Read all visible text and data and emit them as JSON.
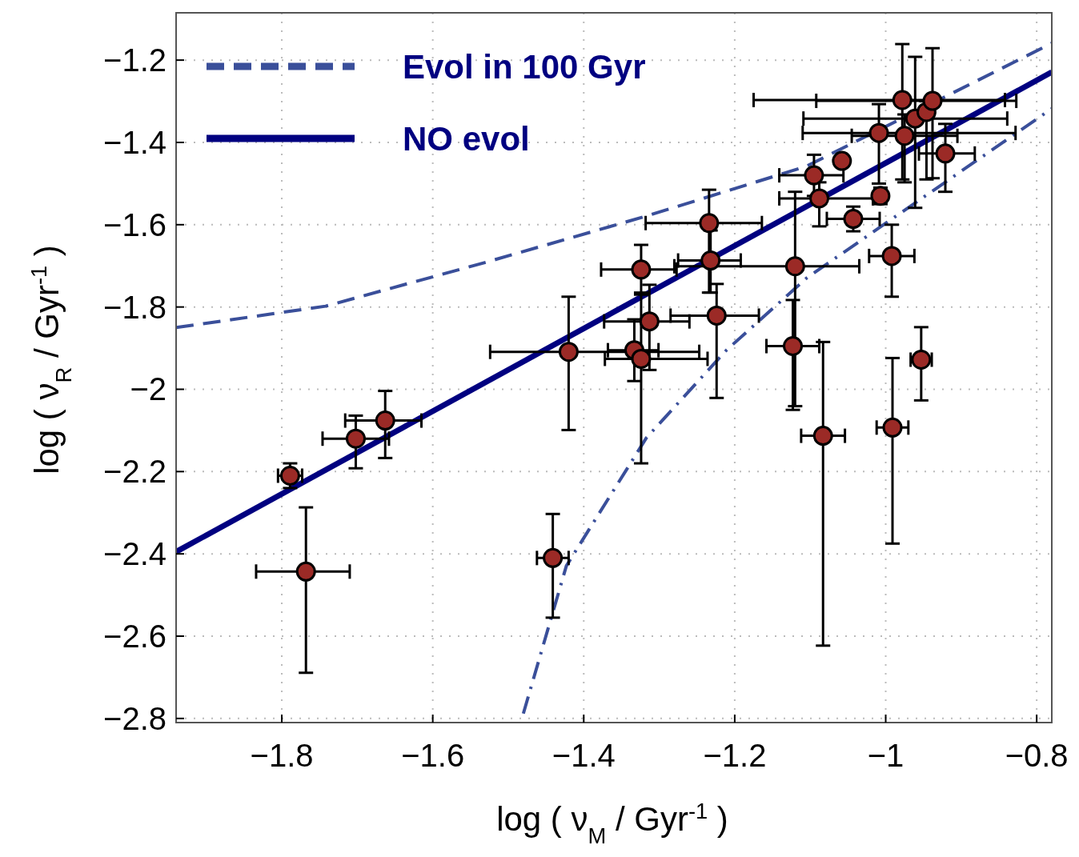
{
  "chart_data": {
    "type": "scatter",
    "xlabel": "log ( ν$_{M}$ / Gyr$^{-1}$ )",
    "ylabel": "log ( ν$_{R}$ / Gyr$^{-1}$ )",
    "xlim": [
      -1.94,
      -0.78
    ],
    "ylim": [
      -2.81,
      -1.085
    ],
    "xticks": [
      {
        "value": -1.8,
        "label": "−1.8"
      },
      {
        "value": -1.6,
        "label": "−1.6"
      },
      {
        "value": -1.4,
        "label": "−1.4"
      },
      {
        "value": -1.2,
        "label": "−1.2"
      },
      {
        "value": -1,
        "label": "−1"
      },
      {
        "value": -0.8,
        "label": "−0.8"
      }
    ],
    "yticks": [
      {
        "value": -2.8,
        "label": "−2.8"
      },
      {
        "value": -2.6,
        "label": "−2.6"
      },
      {
        "value": -2.4,
        "label": "−2.4"
      },
      {
        "value": -2.2,
        "label": "−2.2"
      },
      {
        "value": -2,
        "label": "−2"
      },
      {
        "value": -1.8,
        "label": "−1.8"
      },
      {
        "value": -1.6,
        "label": "−1.6"
      },
      {
        "value": -1.4,
        "label": "−1.4"
      },
      {
        "value": -1.2,
        "label": "−1.2"
      }
    ],
    "grid": true,
    "legend": "top left",
    "series": [
      {
        "type": "line",
        "name": "Evol in 100 Gyr",
        "color": "#3a4f9a",
        "line_style": "dashed",
        "x": [
          -1.94,
          -1.742,
          -1.529,
          -1.317,
          -1.105,
          -0.78
        ],
        "values": [
          -1.85,
          -1.798,
          -1.691,
          -1.579,
          -1.458,
          -1.159
        ]
      },
      {
        "type": "line",
        "name": "NO evol",
        "color": "#000080",
        "line_style": "solid",
        "x": [
          -1.94,
          -0.78
        ],
        "values": [
          -2.395,
          -1.229
        ]
      },
      {
        "type": "line",
        "color": "#3a4f9a",
        "line_style": "dashdot",
        "x": [
          -1.48,
          -1.423,
          -1.317,
          -1.211,
          -1.105,
          -0.998,
          -0.78
        ],
        "values": [
          -2.788,
          -2.429,
          -2.118,
          -1.905,
          -1.73,
          -1.594,
          -1.318
        ]
      },
      {
        "color": "#9b2a26",
        "marker": "circle",
        "x": [
          -1.789,
          -1.702,
          -1.663,
          -1.768,
          -1.441,
          -1.42,
          -1.333,
          -1.324,
          -1.313,
          -1.324,
          -1.234,
          -1.232,
          -1.224,
          -1.12,
          -1.123,
          -1.083,
          -0.991,
          -0.953,
          -0.992,
          -1.043,
          -1.007,
          -1.088,
          -1.095,
          -1.058,
          -1.009,
          -0.978,
          -0.975,
          -0.961,
          -0.946,
          -0.938,
          -0.921
        ],
        "values": [
          -2.21,
          -2.12,
          -2.076,
          -2.443,
          -2.41,
          -1.909,
          -1.905,
          -1.926,
          -1.835,
          -1.709,
          -1.596,
          -1.687,
          -1.821,
          -1.701,
          -1.895,
          -2.113,
          -2.093,
          -1.928,
          -1.676,
          -1.586,
          -1.53,
          -1.536,
          -1.48,
          -1.445,
          -1.377,
          -1.297,
          -1.384,
          -1.342,
          -1.326,
          -1.299,
          -1.427
        ],
        "errors": [
          0.03,
          [
            -2.192,
            -2.064
          ],
          [
            -2.167,
            -2.004
          ],
          [
            -2.689,
            -2.287
          ],
          [
            -2.555,
            -2.303
          ],
          [
            -2.099,
            -1.775
          ],
          [
            -1.98,
            -1.83
          ],
          [
            -2.18,
            -1.765
          ],
          [
            -1.953,
            -1.746
          ],
          [
            -1.77,
            -1.649
          ],
          [
            -1.765,
            -1.515
          ],
          [
            -1.765,
            -1.614
          ],
          [
            -2.021,
            -1.744
          ],
          [
            -2.041,
            -1.52
          ],
          [
            -2.05,
            -1.783
          ],
          [
            -2.623,
            -1.885
          ],
          [
            -2.375,
            -1.924
          ],
          [
            -2.027,
            -1.849
          ],
          [
            -1.775,
            -1.6
          ],
          0.03,
          0.02,
          [
            -1.604,
            -1.497
          ],
          0.05,
          null,
          [
            -1.5,
            -1.307
          ],
          [
            -1.49,
            -1.161
          ],
          [
            -1.497,
            -1.332
          ],
          [
            -1.559,
            -1.192
          ],
          [
            -1.49,
            -1.3
          ],
          [
            -1.487,
            -1.171
          ],
          [
            -1.52,
            -1.355
          ]
        ],
        "xerrors": [
          0.016,
          0.044,
          [
            -1.716,
            -1.615
          ],
          [
            -1.834,
            -1.71
          ],
          0.021,
          [
            -1.524,
            -1.247
          ],
          [
            -1.368,
            -1.301
          ],
          [
            -1.372,
            -1.236
          ],
          [
            -1.373,
            -1.26
          ],
          [
            -1.377,
            -1.277
          ],
          [
            -1.318,
            -1.164
          ],
          [
            -1.275,
            -1.192
          ],
          [
            -1.285,
            -1.168
          ],
          [
            -1.28,
            -1.035
          ],
          0.035,
          0.029,
          0.021,
          0.014,
          0.03,
          [
            -1.078,
            -1.008
          ],
          null,
          [
            -1.141,
            -1.017
          ],
          [
            -1.141,
            -1.056
          ],
          null,
          [
            -1.11,
            -0.828
          ],
          [
            -1.175,
            -0.842
          ],
          0.07,
          [
            -1.109,
            -0.839
          ],
          null,
          [
            -1.092,
            -0.827
          ],
          [
            -0.956,
            -0.882
          ]
        ]
      }
    ]
  }
}
